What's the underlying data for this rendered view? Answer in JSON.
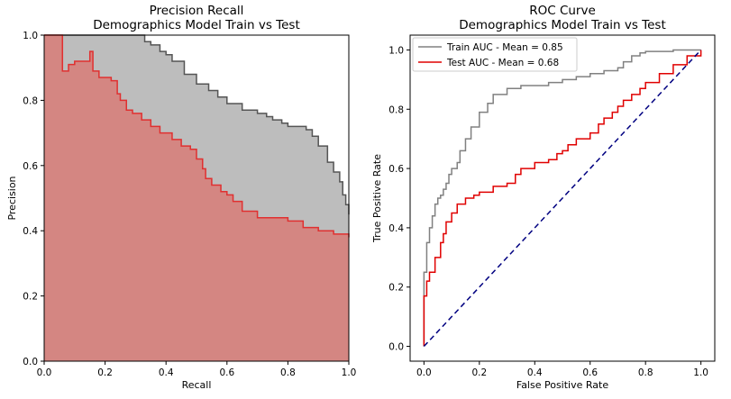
{
  "chart_data": [
    {
      "type": "area",
      "title": "Precision Recall",
      "subtitle": "Demographics Model Train vs Test",
      "xlabel": "Recall",
      "ylabel": "Precision",
      "xlim": [
        0,
        1
      ],
      "ylim": [
        0,
        1
      ],
      "xticks": [
        "0.0",
        "0.2",
        "0.4",
        "0.6",
        "0.8",
        "1.0"
      ],
      "yticks": [
        "0.0",
        "0.2",
        "0.4",
        "0.6",
        "0.8",
        "1.0"
      ],
      "grid": false,
      "series": [
        {
          "color": "#555555",
          "fill": "#bdbdbd",
          "x": [
            0,
            0.32,
            0.33,
            0.35,
            0.38,
            0.4,
            0.42,
            0.46,
            0.5,
            0.54,
            0.57,
            0.6,
            0.65,
            0.7,
            0.73,
            0.75,
            0.78,
            0.8,
            0.83,
            0.86,
            0.88,
            0.9,
            0.93,
            0.95,
            0.97,
            0.98,
            0.99,
            1.0
          ],
          "y": [
            1.0,
            1.0,
            0.98,
            0.97,
            0.95,
            0.94,
            0.92,
            0.88,
            0.85,
            0.83,
            0.81,
            0.79,
            0.77,
            0.76,
            0.75,
            0.74,
            0.73,
            0.72,
            0.72,
            0.71,
            0.69,
            0.66,
            0.61,
            0.58,
            0.55,
            0.51,
            0.48,
            0.45
          ]
        },
        {
          "color": "#e03030",
          "fill": "#d48682",
          "x": [
            0,
            0.05,
            0.06,
            0.08,
            0.1,
            0.12,
            0.15,
            0.16,
            0.18,
            0.2,
            0.22,
            0.24,
            0.25,
            0.27,
            0.29,
            0.32,
            0.35,
            0.38,
            0.4,
            0.42,
            0.45,
            0.48,
            0.5,
            0.52,
            0.53,
            0.55,
            0.58,
            0.6,
            0.62,
            0.65,
            0.7,
            0.75,
            0.8,
            0.85,
            0.9,
            0.95,
            1.0
          ],
          "y": [
            1.0,
            1.0,
            0.89,
            0.91,
            0.92,
            0.92,
            0.95,
            0.89,
            0.87,
            0.87,
            0.86,
            0.82,
            0.8,
            0.77,
            0.76,
            0.74,
            0.72,
            0.7,
            0.7,
            0.68,
            0.66,
            0.65,
            0.62,
            0.59,
            0.56,
            0.54,
            0.52,
            0.51,
            0.49,
            0.46,
            0.44,
            0.44,
            0.43,
            0.41,
            0.4,
            0.39,
            0.38
          ]
        }
      ]
    },
    {
      "type": "line",
      "title": "ROC Curve",
      "subtitle": "Demographics Model Train vs Test",
      "xlabel": "False Positive Rate",
      "ylabel": "True Positive Rate",
      "xlim": [
        -0.05,
        1.05
      ],
      "ylim": [
        -0.05,
        1.05
      ],
      "xticks": [
        "0.0",
        "0.2",
        "0.4",
        "0.6",
        "0.8",
        "1.0"
      ],
      "yticks": [
        "0.0",
        "0.2",
        "0.4",
        "0.6",
        "0.8",
        "1.0"
      ],
      "grid": false,
      "legend": "top-left",
      "series": [
        {
          "name": "Train AUC - Mean = 0.85",
          "color": "#808080",
          "x": [
            0,
            0,
            0.01,
            0.01,
            0.02,
            0.03,
            0.04,
            0.05,
            0.06,
            0.07,
            0.08,
            0.09,
            0.1,
            0.12,
            0.13,
            0.15,
            0.17,
            0.2,
            0.23,
            0.25,
            0.3,
            0.35,
            0.4,
            0.45,
            0.5,
            0.55,
            0.6,
            0.65,
            0.7,
            0.72,
            0.75,
            0.78,
            0.8,
            0.9,
            1.0
          ],
          "y": [
            0,
            0.25,
            0.3,
            0.35,
            0.4,
            0.44,
            0.48,
            0.5,
            0.51,
            0.53,
            0.55,
            0.58,
            0.6,
            0.62,
            0.66,
            0.7,
            0.74,
            0.79,
            0.82,
            0.85,
            0.87,
            0.88,
            0.88,
            0.89,
            0.9,
            0.91,
            0.92,
            0.93,
            0.94,
            0.96,
            0.98,
            0.99,
            0.995,
            1.0,
            1.0
          ]
        },
        {
          "name": "Test AUC - Mean = 0.68",
          "color": "#e00000",
          "x": [
            0,
            0,
            0.01,
            0.02,
            0.04,
            0.06,
            0.07,
            0.08,
            0.1,
            0.12,
            0.15,
            0.18,
            0.2,
            0.25,
            0.3,
            0.33,
            0.35,
            0.4,
            0.45,
            0.48,
            0.5,
            0.52,
            0.55,
            0.6,
            0.63,
            0.65,
            0.68,
            0.7,
            0.72,
            0.75,
            0.78,
            0.8,
            0.85,
            0.9,
            0.95,
            1.0
          ],
          "y": [
            0,
            0.17,
            0.22,
            0.25,
            0.3,
            0.35,
            0.38,
            0.42,
            0.45,
            0.48,
            0.5,
            0.51,
            0.52,
            0.54,
            0.55,
            0.58,
            0.6,
            0.62,
            0.63,
            0.65,
            0.66,
            0.68,
            0.7,
            0.72,
            0.75,
            0.77,
            0.79,
            0.81,
            0.83,
            0.85,
            0.87,
            0.89,
            0.92,
            0.95,
            0.98,
            1.0
          ]
        },
        {
          "color": "#000080",
          "dashed": true,
          "x": [
            0,
            1
          ],
          "y": [
            0,
            1
          ]
        }
      ]
    }
  ]
}
